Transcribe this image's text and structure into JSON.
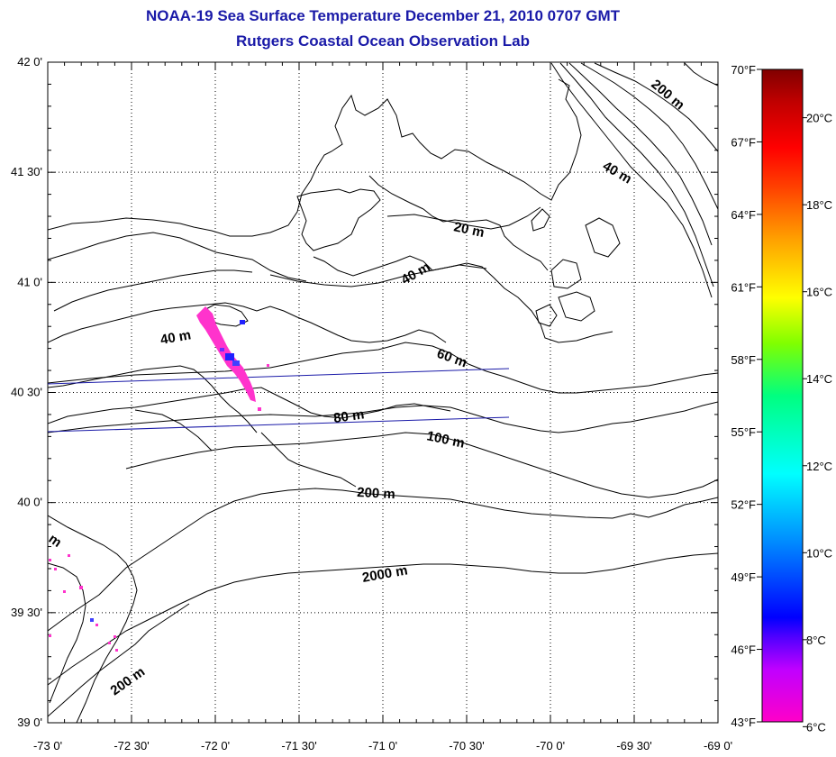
{
  "title": "NOAA-19 Sea Surface Temperature December 21, 2010 0707 GMT",
  "subtitle": "Rutgers Coastal Ocean Observation Lab",
  "map": {
    "lon_range": [
      -73,
      -69
    ],
    "lat_range": [
      39,
      42
    ],
    "lat_ticks": [
      {
        "value": 42.0,
        "label": "42 0'"
      },
      {
        "value": 41.5,
        "label": "41 30'"
      },
      {
        "value": 41.0,
        "label": "41 0'"
      },
      {
        "value": 40.5,
        "label": "40 30'"
      },
      {
        "value": 40.0,
        "label": "40 0'"
      },
      {
        "value": 39.5,
        "label": "39 30'"
      },
      {
        "value": 39.0,
        "label": "39 0'"
      }
    ],
    "lon_ticks": [
      {
        "value": -73.0,
        "label": "-73 0'"
      },
      {
        "value": -72.5,
        "label": "-72 30'"
      },
      {
        "value": -72.0,
        "label": "-72 0'"
      },
      {
        "value": -71.5,
        "label": "-71 30'"
      },
      {
        "value": -71.0,
        "label": "-71 0'"
      },
      {
        "value": -70.5,
        "label": "-70 30'"
      },
      {
        "value": -70.0,
        "label": "-70 0'"
      },
      {
        "value": -69.5,
        "label": "-69 30'"
      },
      {
        "value": -69.0,
        "label": "-69 0'"
      }
    ],
    "grid": true,
    "contour_labels": [
      {
        "text": "200 m"
      },
      {
        "text": "40 m"
      },
      {
        "text": "20 m"
      },
      {
        "text": "40 m"
      },
      {
        "text": "40 m"
      },
      {
        "text": "60 m"
      },
      {
        "text": "80 m"
      },
      {
        "text": "100 m"
      },
      {
        "text": "200 m"
      },
      {
        "text": "2000 m"
      },
      {
        "text": "200 m"
      },
      {
        "text": "m"
      }
    ]
  },
  "colorbar": {
    "colors": [
      "#ff00c8",
      "#7a00ff",
      "#0000ff",
      "#0090ff",
      "#00ffff",
      "#00ff80",
      "#80ff00",
      "#ffff00",
      "#ffb000",
      "#ff5000",
      "#ff0000",
      "#c00000",
      "#800000"
    ],
    "fahrenheit_labels": [
      "70°F",
      "67°F",
      "64°F",
      "61°F",
      "58°F",
      "55°F",
      "52°F",
      "49°F",
      "46°F",
      "43°F"
    ],
    "celsius_labels": [
      "20°C",
      "18°C",
      "16°C",
      "14°C",
      "12°C",
      "10°C",
      "8°C",
      "6°C"
    ]
  },
  "colors": {
    "title": "#1a1aa8",
    "coastline": "#000000",
    "transect": "#1a1aa8",
    "sst_cold": "#ff33cc",
    "sst_blue": "#2020ff"
  }
}
